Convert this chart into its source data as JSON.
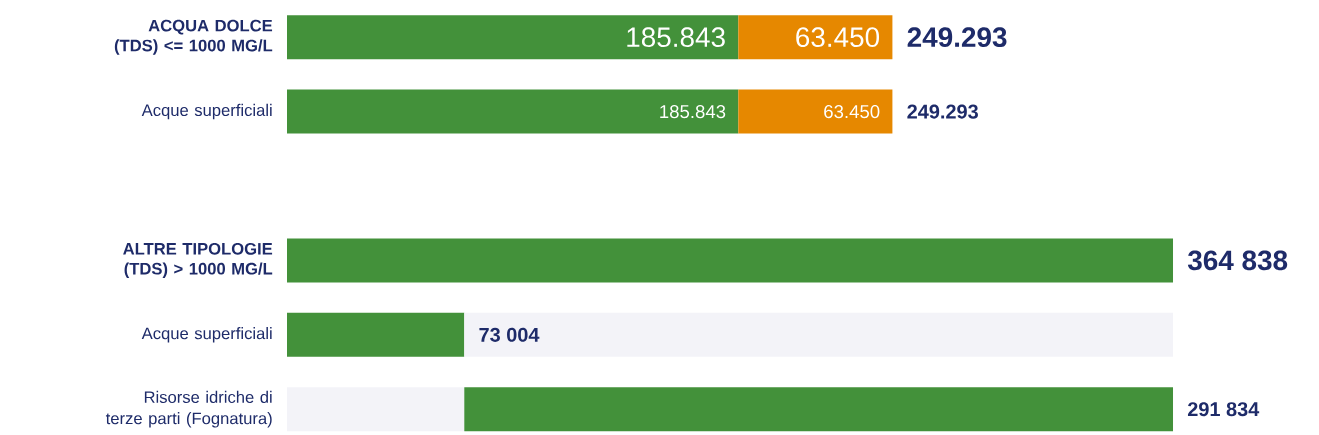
{
  "chart_data": {
    "type": "bar",
    "orientation": "horizontal",
    "stacked": true,
    "categories": [
      "ACQUA DOLCE (TDS) <= 1000 MG/L",
      "Acque superficiali",
      null,
      "ALTRE TIPOLOGIE (TDS) > 1000 MG/L",
      "Acque superficiali",
      "Risorse idriche di terze parti (Fognatura)"
    ],
    "series": [
      {
        "color": "#f3f3f8",
        "values": [
          null,
          null,
          null,
          null,
          null,
          73004
        ]
      },
      {
        "color": "#43913a",
        "values": [
          185843,
          185843,
          null,
          364838,
          73004,
          291834
        ],
        "value_labels": [
          "185.843",
          "185.843",
          null,
          "364 838",
          "73 004",
          "291 834"
        ]
      },
      {
        "color": "#e68800",
        "values": [
          63450,
          63450,
          null,
          null,
          null,
          null
        ],
        "value_labels": [
          "63.450",
          "63.450",
          null,
          null,
          null,
          null
        ]
      },
      {
        "color": "#f3f3f8",
        "values": [
          null,
          null,
          null,
          null,
          291834,
          null
        ]
      }
    ],
    "totals": [
      "249.293",
      "249.293",
      null,
      null,
      null,
      null
    ]
  }
}
